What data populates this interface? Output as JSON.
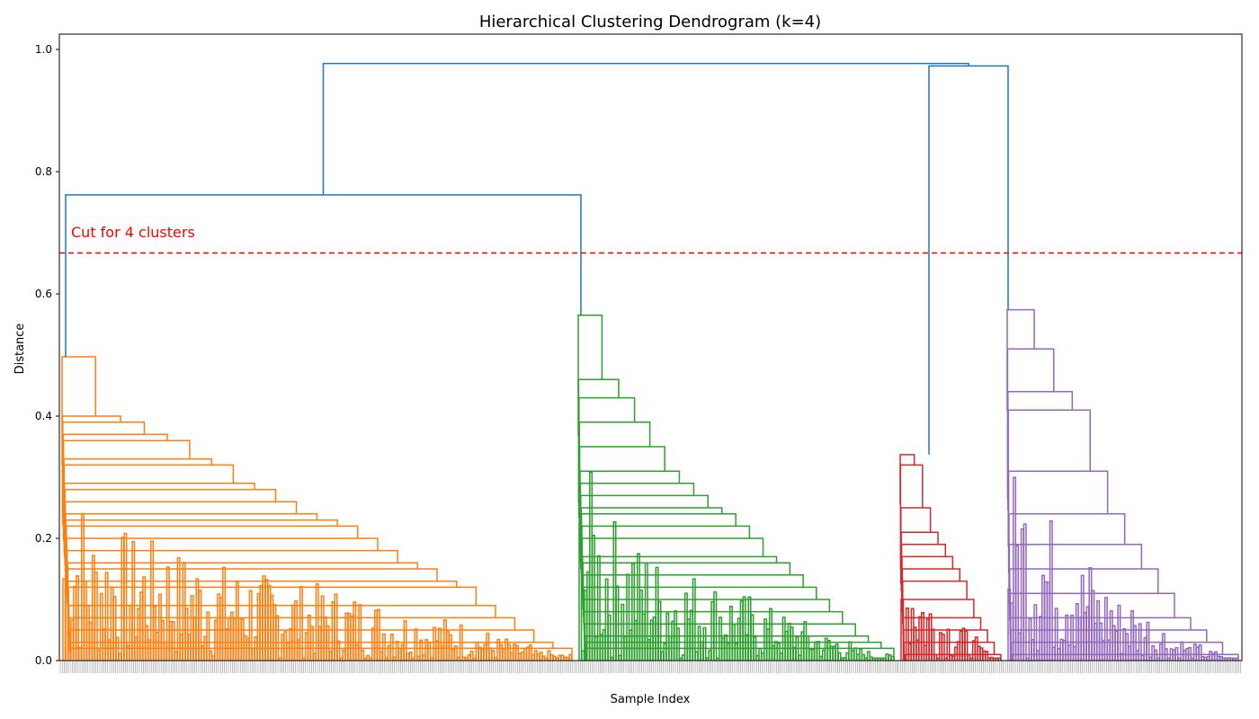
{
  "chart_data": {
    "type": "dendrogram",
    "title": "Hierarchical Clustering Dendrogram (k=4)",
    "xlabel": "Sample Index",
    "ylabel": "Distance",
    "ylim": [
      0,
      1.025
    ],
    "yticks": [
      0.0,
      0.2,
      0.4,
      0.6,
      0.8,
      1.0
    ],
    "ytick_labels": [
      "0.0",
      "0.2",
      "0.4",
      "0.6",
      "0.8",
      "1.0"
    ],
    "grid": false,
    "cut_line": {
      "distance": 0.667,
      "label": "Cut for 4 clusters",
      "color": "#ff0000"
    },
    "link_color_above_cut": "#1f77b4",
    "clusters": [
      {
        "cluster": 1,
        "color": "#ff7f0e",
        "merge_distance": 0.497,
        "sub_merges": [
          0.4,
          0.39,
          0.37,
          0.36,
          0.33,
          0.32,
          0.29,
          0.28,
          0.26,
          0.24,
          0.23,
          0.22,
          0.2,
          0.18,
          0.16,
          0.15,
          0.13,
          0.12,
          0.09,
          0.07,
          0.05,
          0.03,
          0.02
        ]
      },
      {
        "cluster": 2,
        "color": "#2ca02c",
        "merge_distance": 0.565,
        "sub_merges": [
          0.46,
          0.43,
          0.39,
          0.35,
          0.31,
          0.29,
          0.27,
          0.25,
          0.24,
          0.22,
          0.2,
          0.17,
          0.16,
          0.14,
          0.12,
          0.1,
          0.08,
          0.06,
          0.04,
          0.03,
          0.02
        ]
      },
      {
        "cluster": 3,
        "color": "#d62728",
        "merge_distance": 0.337,
        "sub_merges": [
          0.32,
          0.25,
          0.21,
          0.19,
          0.17,
          0.15,
          0.13,
          0.1,
          0.07,
          0.05,
          0.03,
          0.01
        ]
      },
      {
        "cluster": 4,
        "color": "#9467bd",
        "merge_distance": 0.574,
        "sub_merges": [
          0.51,
          0.44,
          0.41,
          0.31,
          0.24,
          0.19,
          0.15,
          0.11,
          0.07,
          0.05,
          0.03,
          0.01
        ]
      }
    ],
    "top_links": [
      {
        "joins": [
          "cluster 1",
          "cluster 2"
        ],
        "distance": 0.762
      },
      {
        "joins": [
          "cluster 3",
          "cluster 4"
        ],
        "distance": 0.973
      },
      {
        "joins": [
          "clusters 1+2",
          "clusters 3+4"
        ],
        "distance": 0.977
      }
    ]
  }
}
